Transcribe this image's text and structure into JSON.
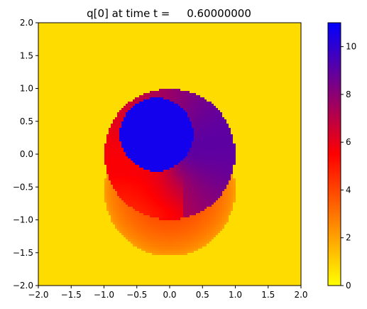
{
  "chart_data": {
    "type": "heatmap",
    "title": "q[0] at time t =     0.60000000",
    "xlabel": "",
    "ylabel": "",
    "xlim": [
      -2.0,
      2.0
    ],
    "ylim": [
      -2.0,
      2.0
    ],
    "xticks": [
      -2.0,
      -1.5,
      -1.0,
      -0.5,
      0.0,
      0.5,
      1.0,
      1.5,
      2.0
    ],
    "yticks": [
      -2.0,
      -1.5,
      -1.0,
      -0.5,
      0.0,
      0.5,
      1.0,
      1.5,
      2.0
    ],
    "xtick_labels": [
      "−2.0",
      "−1.5",
      "−1.0",
      "−0.5",
      "0.0",
      "0.5",
      "1.0",
      "1.5",
      "2.0"
    ],
    "ytick_labels": [
      "−2.0",
      "−1.5",
      "−1.0",
      "−0.5",
      "0.0",
      "0.5",
      "1.0",
      "1.5",
      "2.0"
    ],
    "grid": false,
    "colorbar": {
      "min": 0,
      "max": 11,
      "ticks": [
        0,
        2,
        4,
        6,
        8,
        10
      ],
      "tick_labels": [
        "0",
        "2",
        "4",
        "6",
        "8",
        "10"
      ],
      "colormap": [
        {
          "value": 0,
          "color": "#ffff00"
        },
        {
          "value": 5.5,
          "color": "#ff0000"
        },
        {
          "value": 11,
          "color": "#0000ff"
        }
      ]
    },
    "field": {
      "background_value": 1.35,
      "regions": [
        {
          "shape": "circle",
          "center": [
            0.0,
            0.0
          ],
          "radius": 1.0,
          "description": "outer disk, value ~6 to 9"
        },
        {
          "shape": "circle",
          "center": [
            0.0,
            -0.55
          ],
          "radius": 1.0,
          "description": "lower-left orange wake, value ~2 to 4"
        },
        {
          "shape": "circle",
          "center": [
            -0.2,
            0.3
          ],
          "radius": 0.55,
          "description": "inner blue core, value ~10.5"
        }
      ]
    }
  }
}
